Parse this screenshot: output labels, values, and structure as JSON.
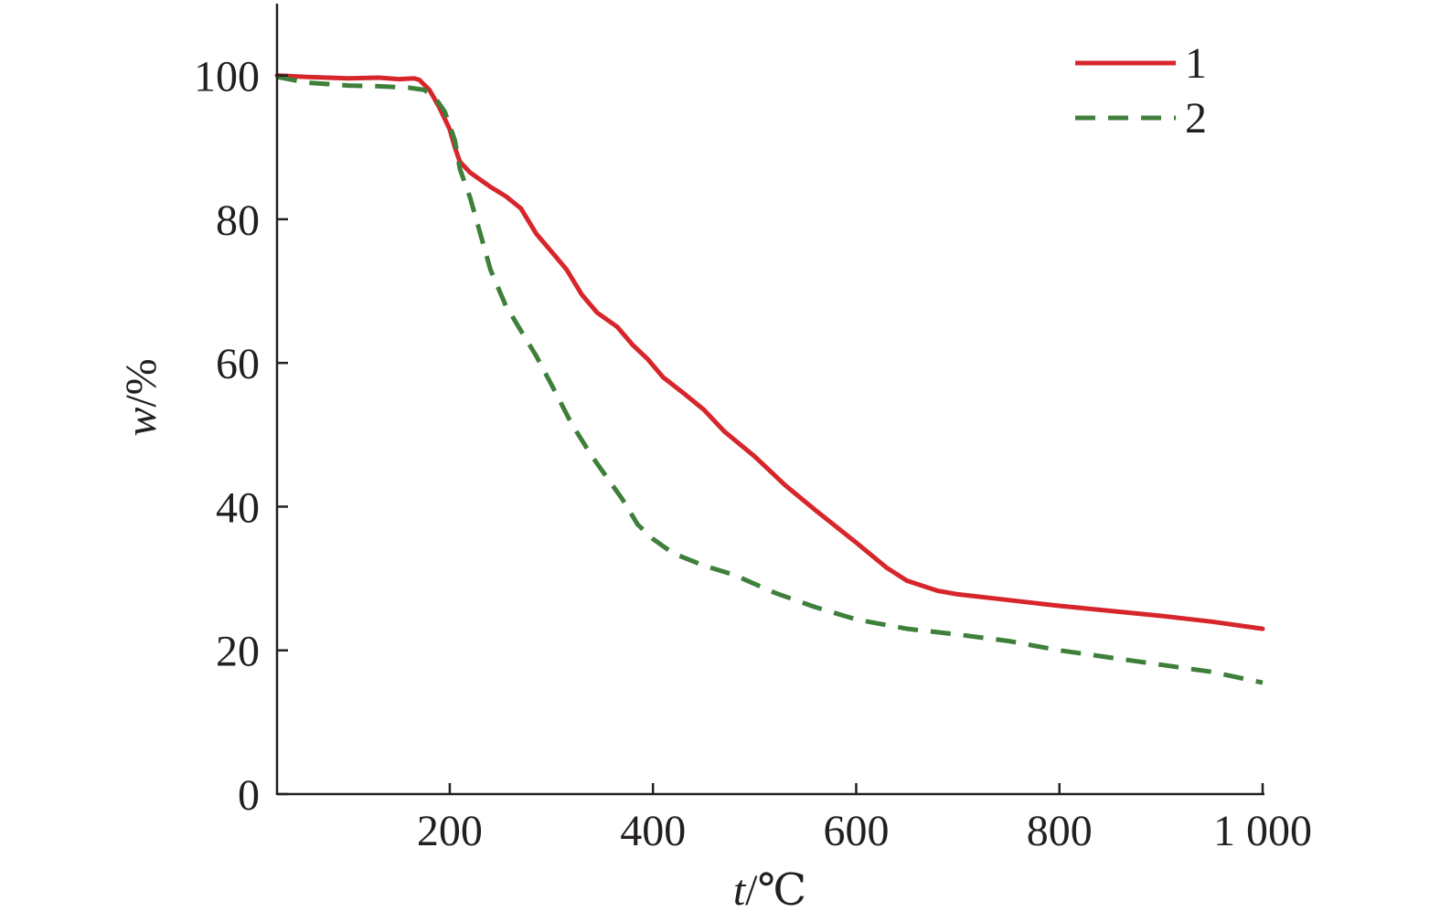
{
  "chart_data": {
    "type": "line",
    "xlabel_var": "t",
    "xlabel_unit": "/℃",
    "ylabel_var": "w",
    "ylabel_unit": "/%",
    "xlim": [
      30,
      1000
    ],
    "ylim": [
      0,
      110
    ],
    "x_ticks": [
      {
        "value": 200,
        "label": "200"
      },
      {
        "value": 400,
        "label": "400"
      },
      {
        "value": 600,
        "label": "600"
      },
      {
        "value": 800,
        "label": "800"
      },
      {
        "value": 1000,
        "label": "1 000"
      }
    ],
    "y_ticks": [
      {
        "value": 0,
        "label": "0"
      },
      {
        "value": 20,
        "label": "20"
      },
      {
        "value": 40,
        "label": "40"
      },
      {
        "value": 60,
        "label": "60"
      },
      {
        "value": 80,
        "label": "80"
      },
      {
        "value": 100,
        "label": "100"
      }
    ],
    "grid": false,
    "legend_position": "top-right",
    "series": [
      {
        "name": "1",
        "color": "#d7262b",
        "style": "solid",
        "points": [
          [
            30,
            100
          ],
          [
            60,
            99.8
          ],
          [
            100,
            99.6
          ],
          [
            130,
            99.7
          ],
          [
            150,
            99.5
          ],
          [
            165,
            99.6
          ],
          [
            170,
            99.4
          ],
          [
            180,
            98.0
          ],
          [
            190,
            95.5
          ],
          [
            200,
            92.5
          ],
          [
            205,
            90.0
          ],
          [
            210,
            88.0
          ],
          [
            220,
            86.5
          ],
          [
            240,
            84.5
          ],
          [
            255,
            83.2
          ],
          [
            270,
            81.5
          ],
          [
            285,
            78.0
          ],
          [
            300,
            75.5
          ],
          [
            315,
            73.0
          ],
          [
            330,
            69.5
          ],
          [
            345,
            67.0
          ],
          [
            365,
            65.0
          ],
          [
            380,
            62.5
          ],
          [
            395,
            60.5
          ],
          [
            410,
            58.0
          ],
          [
            430,
            55.8
          ],
          [
            450,
            53.5
          ],
          [
            470,
            50.5
          ],
          [
            500,
            47.0
          ],
          [
            530,
            43.0
          ],
          [
            560,
            39.5
          ],
          [
            600,
            35.0
          ],
          [
            630,
            31.5
          ],
          [
            650,
            29.7
          ],
          [
            680,
            28.3
          ],
          [
            700,
            27.8
          ],
          [
            750,
            27.0
          ],
          [
            800,
            26.2
          ],
          [
            850,
            25.5
          ],
          [
            900,
            24.8
          ],
          [
            950,
            24.0
          ],
          [
            1000,
            23.0
          ]
        ]
      },
      {
        "name": "2",
        "color": "#3e7f3a",
        "style": "dashed",
        "points": [
          [
            30,
            99.8
          ],
          [
            60,
            99.0
          ],
          [
            100,
            98.6
          ],
          [
            130,
            98.5
          ],
          [
            160,
            98.3
          ],
          [
            175,
            98.0
          ],
          [
            185,
            97.0
          ],
          [
            195,
            95.0
          ],
          [
            205,
            91.0
          ],
          [
            210,
            87.0
          ],
          [
            220,
            83.0
          ],
          [
            230,
            78.0
          ],
          [
            240,
            73.0
          ],
          [
            255,
            68.0
          ],
          [
            270,
            64.5
          ],
          [
            285,
            61.0
          ],
          [
            300,
            57.0
          ],
          [
            320,
            51.5
          ],
          [
            340,
            47.0
          ],
          [
            355,
            44.0
          ],
          [
            370,
            41.0
          ],
          [
            385,
            37.5
          ],
          [
            400,
            35.5
          ],
          [
            420,
            33.5
          ],
          [
            450,
            31.8
          ],
          [
            480,
            30.5
          ],
          [
            520,
            28.0
          ],
          [
            560,
            26.0
          ],
          [
            600,
            24.3
          ],
          [
            650,
            23.0
          ],
          [
            700,
            22.2
          ],
          [
            750,
            21.3
          ],
          [
            800,
            20.0
          ],
          [
            850,
            19.0
          ],
          [
            900,
            18.0
          ],
          [
            950,
            17.0
          ],
          [
            1000,
            15.5
          ]
        ]
      }
    ]
  }
}
